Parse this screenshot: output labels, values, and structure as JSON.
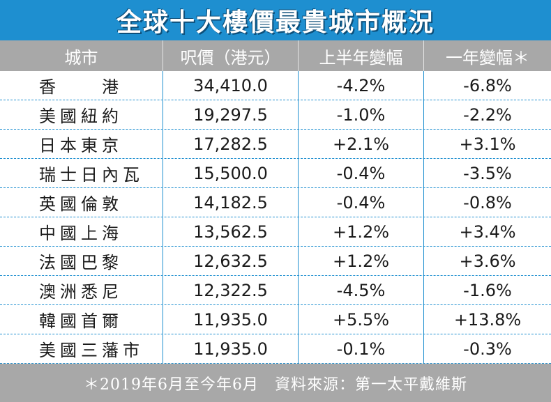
{
  "title": "全球十大樓價最貴城市概況",
  "footnote": "＊2019年6月至今年6月　資料來源：第一太平戴維斯",
  "chart_data": {
    "type": "table",
    "columns": [
      "城市",
      "呎價（港元）",
      "上半年變幅",
      "一年變幅＊"
    ],
    "rows": [
      [
        "香　　港",
        "34,410.0",
        "-4.2%",
        "-6.8%"
      ],
      [
        "美國紐約",
        "19,297.5",
        "-1.0%",
        "-2.2%"
      ],
      [
        "日本東京",
        "17,282.5",
        "+2.1%",
        "+3.1%"
      ],
      [
        "瑞士日內瓦",
        "15,500.0",
        "-0.4%",
        "-3.5%"
      ],
      [
        "英國倫敦",
        "14,182.5",
        "-0.4%",
        "-0.8%"
      ],
      [
        "中國上海",
        "13,562.5",
        "+1.2%",
        "+3.4%"
      ],
      [
        "法國巴黎",
        "12,632.5",
        "+1.2%",
        "+3.6%"
      ],
      [
        "澳洲悉尼",
        "12,322.5",
        "-4.5%",
        "-1.6%"
      ],
      [
        "韓國首爾",
        "11,935.0",
        "+5.5%",
        "+13.8%"
      ],
      [
        "美國三藩市",
        "11,935.0",
        "-0.1%",
        "-0.3%"
      ]
    ]
  },
  "colors": {
    "title_bg": "#1e8fd0",
    "header_bg": "#a8a8a8",
    "row_line": "#1e8fd0"
  }
}
